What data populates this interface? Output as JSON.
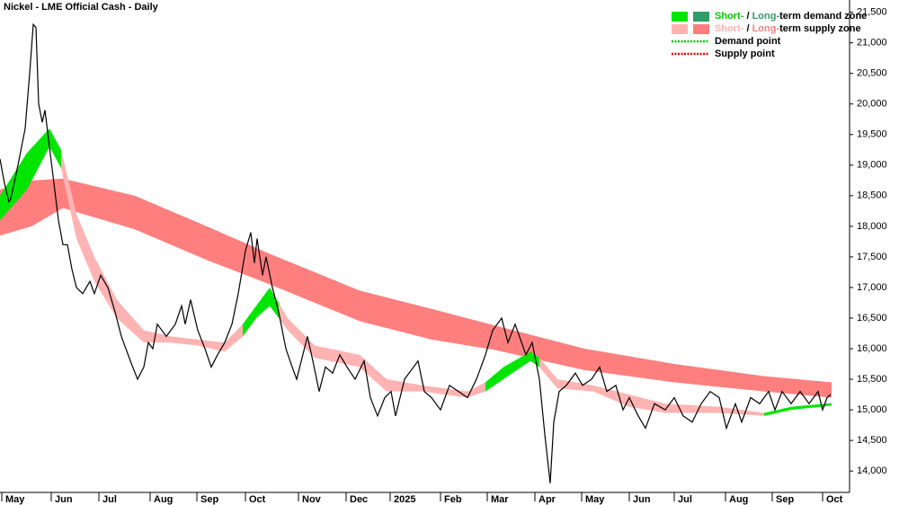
{
  "chart_data": {
    "type": "line",
    "title": "Nickel - LME Official Cash - Daily",
    "xlim": [
      0,
      94.5
    ],
    "ylim": [
      13650,
      21700
    ],
    "xticks": [
      {
        "value": 0.2,
        "label": "May"
      },
      {
        "value": 5.7,
        "label": "Jun"
      },
      {
        "value": 11.0,
        "label": "Jul"
      },
      {
        "value": 16.7,
        "label": "Aug"
      },
      {
        "value": 21.9,
        "label": "Sep"
      },
      {
        "value": 27.3,
        "label": "Oct"
      },
      {
        "value": 33.2,
        "label": "Nov"
      },
      {
        "value": 38.5,
        "label": "Dec"
      },
      {
        "value": 43.4,
        "label": "2025"
      },
      {
        "value": 49.0,
        "label": "Feb"
      },
      {
        "value": 54.2,
        "label": "Mar"
      },
      {
        "value": 59.5,
        "label": "Apr"
      },
      {
        "value": 64.7,
        "label": "May"
      },
      {
        "value": 70.0,
        "label": "Jun"
      },
      {
        "value": 75.0,
        "label": "Jul"
      },
      {
        "value": 80.7,
        "label": "Aug"
      },
      {
        "value": 85.9,
        "label": "Sep"
      },
      {
        "value": 91.5,
        "label": "Oct"
      }
    ],
    "yticks": [
      {
        "value": 14000,
        "label": "14,000"
      },
      {
        "value": 14500,
        "label": "14,500"
      },
      {
        "value": 15000,
        "label": "15,000"
      },
      {
        "value": 15500,
        "label": "15,500"
      },
      {
        "value": 16000,
        "label": "16,000"
      },
      {
        "value": 16500,
        "label": "16,500"
      },
      {
        "value": 17000,
        "label": "17,000"
      },
      {
        "value": 17500,
        "label": "17,500"
      },
      {
        "value": 18000,
        "label": "18,000"
      },
      {
        "value": 18500,
        "label": "18,500"
      },
      {
        "value": 19000,
        "label": "19,000"
      },
      {
        "value": 19500,
        "label": "19,500"
      },
      {
        "value": 20000,
        "label": "20,000"
      },
      {
        "value": 20500,
        "label": "20,500"
      },
      {
        "value": 21000,
        "label": "21,000"
      },
      {
        "value": 21500,
        "label": "21,500"
      }
    ],
    "zones": [
      {
        "color": "#ff7f7f",
        "x": [
          0,
          3.5,
          7.0,
          15.0,
          23.0,
          30.0,
          40.0,
          48.0,
          55.0,
          65.0,
          75.0,
          85.0,
          92.5
        ],
        "upper": [
          18600,
          18750,
          18780,
          18500,
          18000,
          17550,
          16950,
          16650,
          16380,
          16000,
          15750,
          15550,
          15450
        ],
        "lower": [
          17850,
          18000,
          18300,
          17950,
          17450,
          17050,
          16450,
          16150,
          15980,
          15650,
          15450,
          15300,
          15200
        ]
      },
      {
        "color": "#00e600",
        "x": [
          0,
          3.0,
          5.5,
          6.8
        ],
        "upper": [
          18500,
          19200,
          19600,
          19250
        ],
        "lower": [
          18100,
          18600,
          19300,
          18950
        ]
      },
      {
        "color": "#ffb3b3",
        "x": [
          6.8,
          8.5,
          10.5,
          13.0,
          16.0,
          19.0,
          22.0,
          25.0,
          27.0
        ],
        "upper": [
          19250,
          18200,
          17500,
          16800,
          16300,
          16200,
          16150,
          16100,
          16400
        ],
        "lower": [
          18950,
          17800,
          17100,
          16500,
          16100,
          16100,
          16050,
          15950,
          16200
        ]
      },
      {
        "color": "#00e600",
        "x": [
          27.0,
          28.5,
          30.0,
          31.0
        ],
        "upper": [
          16400,
          16700,
          17000,
          16750
        ],
        "lower": [
          16200,
          16500,
          16700,
          16500
        ]
      },
      {
        "color": "#ffb3b3",
        "x": [
          31.0,
          32.0,
          35.0,
          40.0,
          43.0,
          47.0,
          52.0,
          54.0
        ],
        "upper": [
          16750,
          16500,
          16050,
          15900,
          15500,
          15400,
          15300,
          15450
        ],
        "lower": [
          16500,
          16300,
          15850,
          15700,
          15300,
          15300,
          15200,
          15300
        ]
      },
      {
        "color": "#00e600",
        "x": [
          54.0,
          56.0,
          59.0,
          60.0
        ],
        "upper": [
          15450,
          15700,
          15950,
          15850
        ],
        "lower": [
          15300,
          15500,
          15800,
          15700
        ]
      },
      {
        "color": "#ffb3b3",
        "x": [
          60.0,
          62.0,
          66.0,
          70.0,
          74.0,
          80.0,
          85.0
        ],
        "upper": [
          15850,
          15500,
          15400,
          15250,
          15100,
          15050,
          14950
        ],
        "lower": [
          15700,
          15350,
          15300,
          15050,
          14950,
          14950,
          14900
        ]
      },
      {
        "color": "#00e600",
        "x": [
          85.0,
          88.0,
          92.5
        ],
        "upper": [
          14950,
          15050,
          15110
        ],
        "lower": [
          14900,
          15000,
          15070
        ]
      }
    ],
    "series": [
      {
        "color": "#000000",
        "x": [
          0,
          0.5,
          1.0,
          1.2,
          2.0,
          2.8,
          3.3,
          3.7,
          4.0,
          4.3,
          4.7,
          5.0,
          5.5,
          6.0,
          6.5,
          7.0,
          7.5,
          8.0,
          8.5,
          9.2,
          10.0,
          10.5,
          11.2,
          12.0,
          12.8,
          13.5,
          14.5,
          15.3,
          16.0,
          16.5,
          17.0,
          17.5,
          18.5,
          19.5,
          20.2,
          20.6,
          21.2,
          22.0,
          22.8,
          23.5,
          24.2,
          25.0,
          25.8,
          26.5,
          27.3,
          27.9,
          28.3,
          28.6,
          29.2,
          29.6,
          30.3,
          31.0,
          31.8,
          32.5,
          33.0,
          34.2,
          34.8,
          35.5,
          36.2,
          37.0,
          37.8,
          38.6,
          39.5,
          40.5,
          41.2,
          42.0,
          42.8,
          43.5,
          44.0,
          45.0,
          46.5,
          47.2,
          48.0,
          49.0,
          50.0,
          51.0,
          52.0,
          53.0,
          54.0,
          54.8,
          55.8,
          56.5,
          57.3,
          58.5,
          59.2,
          60.0,
          60.6,
          61.2,
          61.6,
          62.2,
          63.0,
          64.0,
          64.8,
          65.8,
          66.7,
          67.5,
          68.5,
          69.3,
          70.0,
          71.0,
          71.8,
          72.8,
          74.0,
          75.0,
          76.0,
          77.0,
          78.0,
          79.0,
          80.0,
          80.8,
          81.8,
          82.5,
          83.5,
          84.5,
          85.5,
          86.2,
          87.0,
          88.0,
          89.0,
          90.0,
          91.0,
          91.5,
          92.0,
          92.4
        ],
        "values": [
          19100,
          18700,
          18400,
          18450,
          19000,
          19600,
          20500,
          21300,
          21250,
          20000,
          19700,
          19900,
          19300,
          18700,
          18100,
          17700,
          17700,
          17300,
          17000,
          16900,
          17100,
          16900,
          17200,
          17000,
          16600,
          16200,
          15800,
          15500,
          15700,
          16100,
          16000,
          16400,
          16200,
          16400,
          16700,
          16400,
          16800,
          16300,
          16000,
          15700,
          15900,
          16100,
          16400,
          16900,
          17600,
          17900,
          17400,
          17800,
          17200,
          17500,
          17000,
          16600,
          16000,
          15700,
          15500,
          16200,
          15800,
          15300,
          15700,
          15600,
          15900,
          15700,
          15500,
          15800,
          15200,
          14900,
          15200,
          15300,
          14900,
          15500,
          15800,
          15300,
          15200,
          15000,
          15400,
          15300,
          15200,
          15500,
          15900,
          16300,
          16500,
          16100,
          16400,
          15900,
          16100,
          15500,
          14600,
          13800,
          14800,
          15300,
          15400,
          15600,
          15400,
          15500,
          15700,
          15300,
          15400,
          15000,
          15200,
          14900,
          14700,
          15100,
          15000,
          15200,
          14900,
          14800,
          15100,
          15300,
          15200,
          14700,
          15100,
          14800,
          15200,
          15100,
          15300,
          15000,
          15300,
          15100,
          15300,
          15100,
          15300,
          15000,
          15200,
          15250
        ]
      }
    ],
    "legend": [
      {
        "swatches": [
          "#00e600",
          "#2e9e6a"
        ],
        "parts": [
          "Short-",
          " / ",
          "Long-",
          "term demand zone"
        ],
        "part_colors": [
          "#00cc00",
          "#000000",
          "#2e9e6a",
          "#000000"
        ]
      },
      {
        "swatches": [
          "#ffb3b3",
          "#ff7f7f"
        ],
        "parts": [
          "Short-",
          " / ",
          "Long-",
          "term supply zone"
        ],
        "part_colors": [
          "#ffb3b3",
          "#000000",
          "#ff7f7f",
          "#000000"
        ]
      },
      {
        "line": "#00cc00",
        "parts": [
          "Demand point"
        ],
        "part_colors": [
          "#000000"
        ]
      },
      {
        "line": "#ee0000",
        "parts": [
          "Supply point"
        ],
        "part_colors": [
          "#000000"
        ]
      }
    ]
  }
}
